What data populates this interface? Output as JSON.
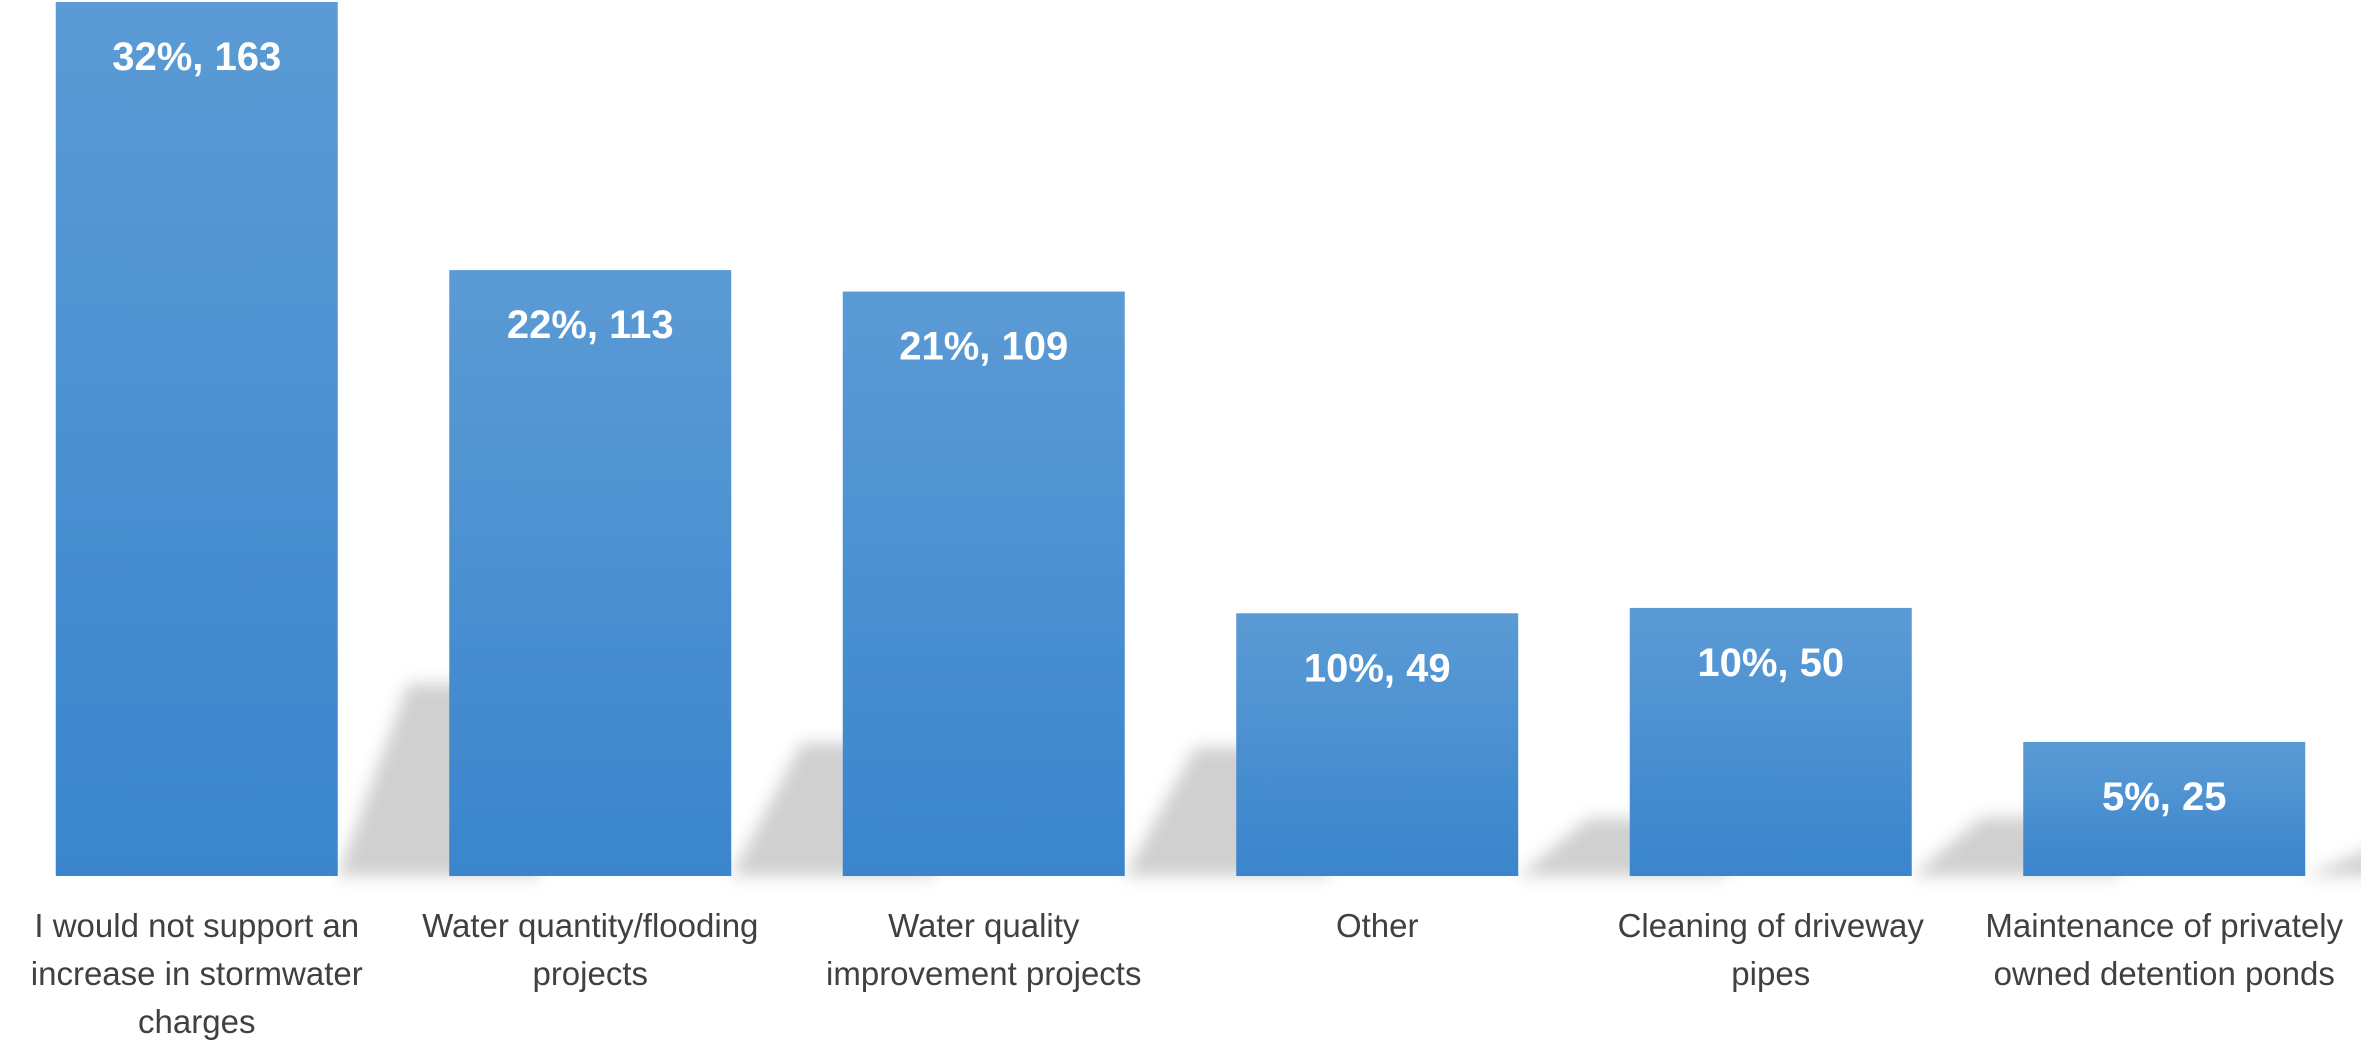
{
  "chart_data": {
    "type": "bar",
    "categories": [
      [
        "I would not support an",
        "increase in stormwater",
        "charges"
      ],
      [
        "Water quantity/flooding",
        "projects"
      ],
      [
        "Water quality",
        "improvement projects"
      ],
      [
        "Other"
      ],
      [
        "Cleaning of driveway",
        "pipes"
      ],
      [
        "Maintenance of privately",
        "owned detention ponds"
      ]
    ],
    "values": [
      163,
      113,
      109,
      49,
      50,
      25
    ],
    "percents": [
      "32%",
      "22%",
      "21%",
      "10%",
      "10%",
      "5%"
    ],
    "data_labels": [
      "32%, 163",
      "22%, 113",
      "21%, 109",
      "10%, 49",
      "10%, 50",
      "5%, 25"
    ],
    "ylim": [
      0,
      163
    ],
    "grid": false,
    "legend": "none",
    "colors": {
      "bar_top": "#5b9bd5",
      "bar_bottom": "#3a85cc",
      "shadow": "#c8c8c8",
      "label": "#ffffff",
      "category_text": "#404040"
    }
  }
}
